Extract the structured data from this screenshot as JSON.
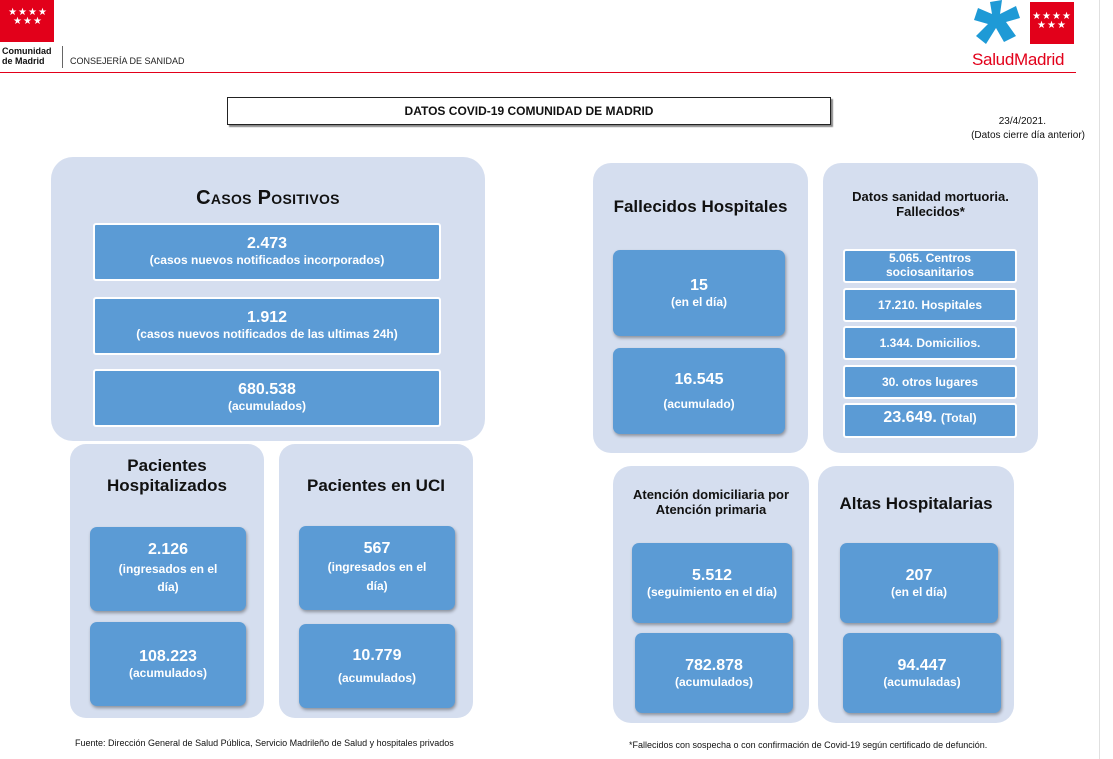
{
  "header": {
    "org_stars": "★★★★\n★★★",
    "org_name_line1": "Comunidad",
    "org_name_line2": "de Madrid",
    "department": "CONSEJERÍA DE SANIDAD",
    "brand_salud": "Salud",
    "brand_madrid": "Madrid",
    "colors": {
      "brand_red": "#e2001a",
      "brand_blue": "#1e9ad6"
    }
  },
  "title": "DATOS COVID-19 COMUNIDAD DE MADRID",
  "date": "23/4/2021.",
  "date_note": "(Datos cierre día anterior)",
  "casos": {
    "title": "Casos Positivos",
    "items": [
      {
        "value": "2.473",
        "label": "(casos nuevos notificados incorporados)"
      },
      {
        "value": "1.912",
        "label": "(casos nuevos notificados de las ultimas 24h)"
      },
      {
        "value": "680.538",
        "label": "(acumulados)"
      }
    ]
  },
  "hospitalizados": {
    "title": "Pacientes Hospitalizados",
    "items": [
      {
        "value": "2.126",
        "label": "(ingresados en el día)"
      },
      {
        "value": "108.223",
        "label": "(acumulados)"
      }
    ]
  },
  "uci": {
    "title": "Pacientes en UCI",
    "items": [
      {
        "value": "567",
        "label": "(ingresados en el día)"
      },
      {
        "value": "10.779",
        "label": "(acumulados)"
      }
    ]
  },
  "fallecidos": {
    "title": "Fallecidos Hospitales",
    "items": [
      {
        "value": "15",
        "label": "(en el día)"
      },
      {
        "value": "16.545",
        "label": "(acumulado)"
      }
    ]
  },
  "mortuoria": {
    "title": "Datos sanidad mortuoria. Fallecidos*",
    "items": [
      "5.065. Centros sociosanitarios",
      "17.210. Hospitales",
      "1.344. Domicilios.",
      "30. otros lugares"
    ],
    "total_value": "23.649.",
    "total_label": "(Total)"
  },
  "domiciliaria": {
    "title": "Atención domiciliaria por Atención primaria",
    "items": [
      {
        "value": "5.512",
        "label": "(seguimiento en el día)"
      },
      {
        "value": "782.878",
        "label": "(acumulados)"
      }
    ]
  },
  "altas": {
    "title": "Altas Hospitalarias",
    "items": [
      {
        "value": "207",
        "label": "(en el día)"
      },
      {
        "value": "94.447",
        "label": "(acumuladas)"
      }
    ]
  },
  "footer": {
    "source": "Fuente: Dirección General de Salud Pública, Servicio Madrileño de Salud y hospitales privados",
    "footnote": "*Fallecidos con sospecha o con confirmación de Covid-19 según certificado de defunción."
  },
  "colors": {
    "panel_bg": "#d5deef",
    "box_bg": "#5b9bd5"
  }
}
